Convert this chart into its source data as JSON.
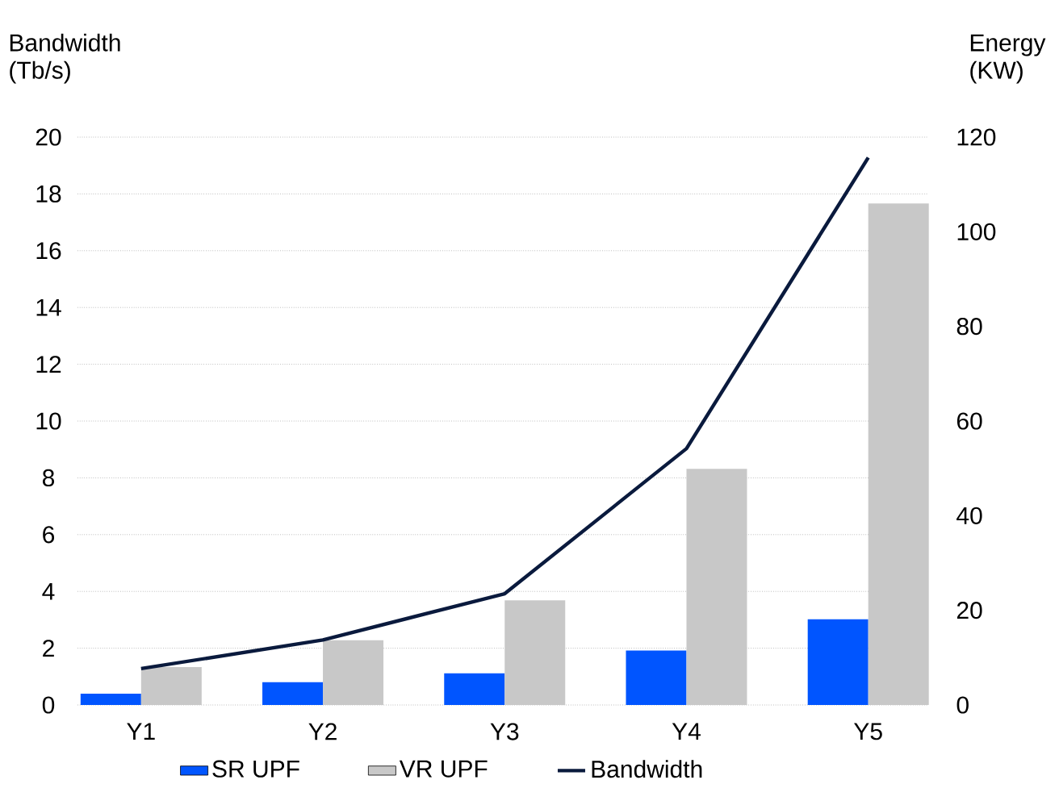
{
  "chart_data": {
    "type": "bar",
    "ylabel": "Bandwidth (Tb/s)",
    "y2label": "Energy (KW)",
    "categories": [
      "Y1",
      "Y2",
      "Y3",
      "Y4",
      "Y5"
    ],
    "series": [
      {
        "name": "SR UPF",
        "color": "#0055ff",
        "axis": "y2",
        "values": [
          2.4,
          4.8,
          6.7,
          11.5,
          18.1
        ]
      },
      {
        "name": "VR UPF",
        "color": "#c8c8c8",
        "axis": "y2",
        "values": [
          8.0,
          13.7,
          22.1,
          49.9,
          106
        ]
      },
      {
        "name": "Bandwidth",
        "type": "line",
        "color": "#0a1a3d",
        "axis": "y",
        "values": [
          1.28,
          2.29,
          3.92,
          9.03,
          19.28
        ]
      }
    ],
    "ylim": [
      0,
      20
    ],
    "yticks": [
      0,
      2,
      4,
      6,
      8,
      10,
      12,
      14,
      16,
      18,
      20
    ],
    "y2lim": [
      0,
      120
    ],
    "y2ticks": [
      0,
      20,
      40,
      60,
      80,
      100,
      120
    ],
    "grid": "y",
    "legend": "bottom",
    "line_style": "solid",
    "marker": "none"
  }
}
